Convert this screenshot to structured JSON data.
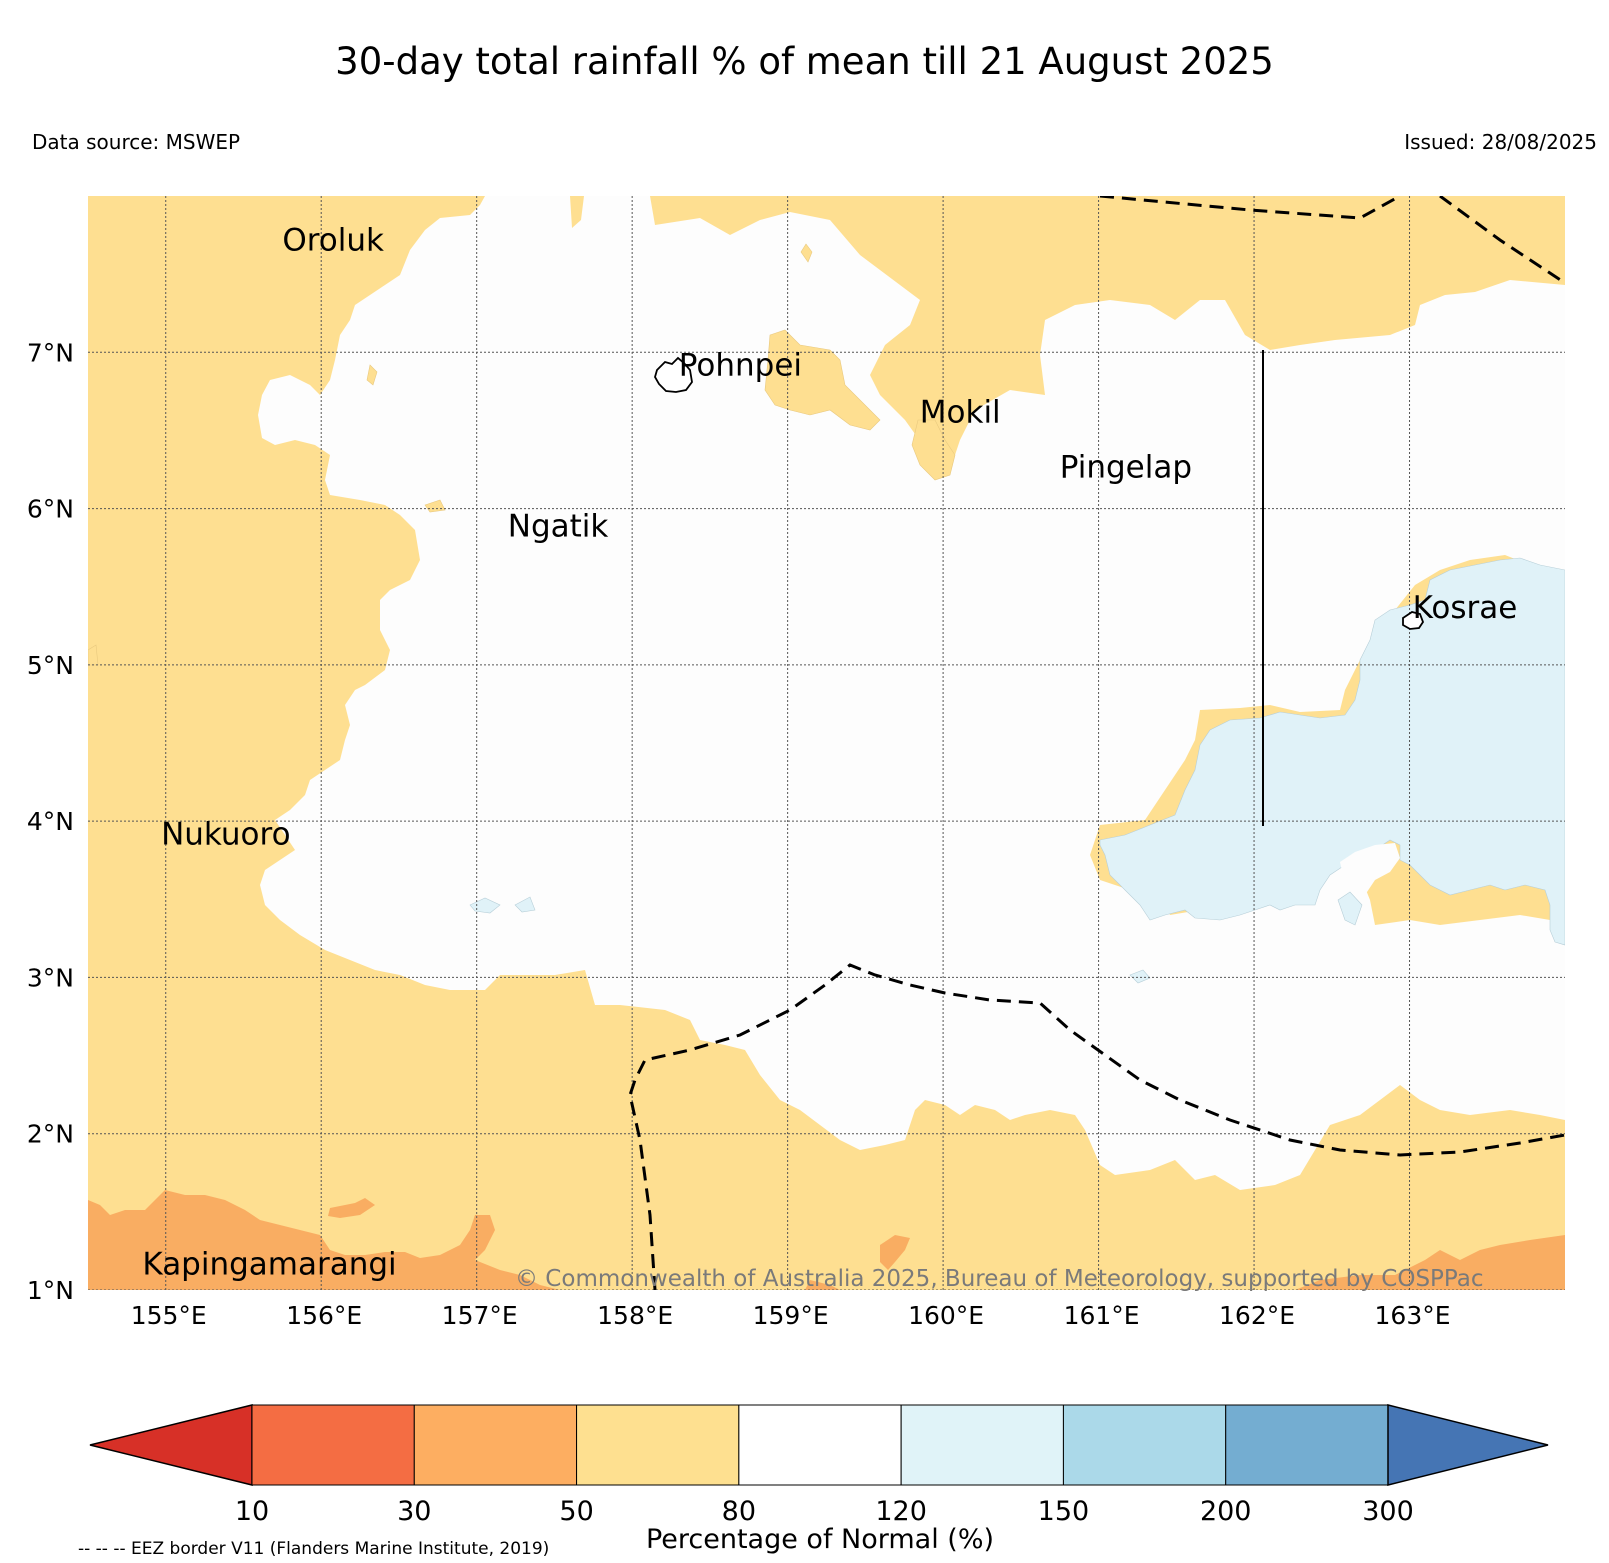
{
  "title": "30-day total rainfall % of mean till 21 August 2025",
  "data_source": "Data source: MSWEP",
  "issued": "Issued: 28/08/2025",
  "map": {
    "lon_range": [
      154.5,
      164.0
    ],
    "lat_range": [
      1.0,
      8.0
    ],
    "lat_ticks": [
      {
        "value": 1,
        "label": "1°N"
      },
      {
        "value": 2,
        "label": "2°N"
      },
      {
        "value": 3,
        "label": "3°N"
      },
      {
        "value": 4,
        "label": "4°N"
      },
      {
        "value": 5,
        "label": "5°N"
      },
      {
        "value": 6,
        "label": "6°N"
      },
      {
        "value": 7,
        "label": "7°N"
      }
    ],
    "lon_ticks": [
      {
        "value": 155,
        "label": "155°E"
      },
      {
        "value": 156,
        "label": "156°E"
      },
      {
        "value": 157,
        "label": "157°E"
      },
      {
        "value": 158,
        "label": "158°E"
      },
      {
        "value": 159,
        "label": "159°E"
      },
      {
        "value": 160,
        "label": "160°E"
      },
      {
        "value": 161,
        "label": "161°E"
      },
      {
        "value": 162,
        "label": "162°E"
      },
      {
        "value": 163,
        "label": "163°E"
      }
    ],
    "places": [
      {
        "name": "Oroluk",
        "lon": 155.75,
        "lat": 7.65
      },
      {
        "name": "Pohnpei",
        "lon": 158.3,
        "lat": 6.85
      },
      {
        "name": "Mokil",
        "lon": 159.85,
        "lat": 6.55
      },
      {
        "name": "Pingelap",
        "lon": 160.75,
        "lat": 6.2
      },
      {
        "name": "Ngatik",
        "lon": 157.2,
        "lat": 5.82
      },
      {
        "name": "Kosrae",
        "lon": 163.02,
        "lat": 5.3
      },
      {
        "name": "Nukuoro",
        "lon": 154.97,
        "lat": 3.85
      },
      {
        "name": "Kapingamarangi",
        "lon": 154.85,
        "lat": 1.1
      }
    ],
    "copyright": "© Commonwealth of Australia 2025, Bureau of Meteorology, supported by COSPPac",
    "region_colors": {
      "80-120": "#fdfdfd",
      "50-80": "#fedf91",
      "30-50": "#f9ad62",
      "120-150": "#e0f2f8"
    }
  },
  "colorbar": {
    "label": "Percentage of Normal (%)",
    "boundaries": [
      "10",
      "30",
      "50",
      "80",
      "120",
      "150",
      "200",
      "300"
    ],
    "colors": [
      "#d73027",
      "#f46d43",
      "#fdae61",
      "#fee090",
      "#ffffff",
      "#e0f3f8",
      "#abd9e9",
      "#74add1",
      "#4575b4"
    ],
    "extend": "both"
  },
  "eez_note": "-- -- -- EEZ border V11 (Flanders Marine Institute, 2019)"
}
